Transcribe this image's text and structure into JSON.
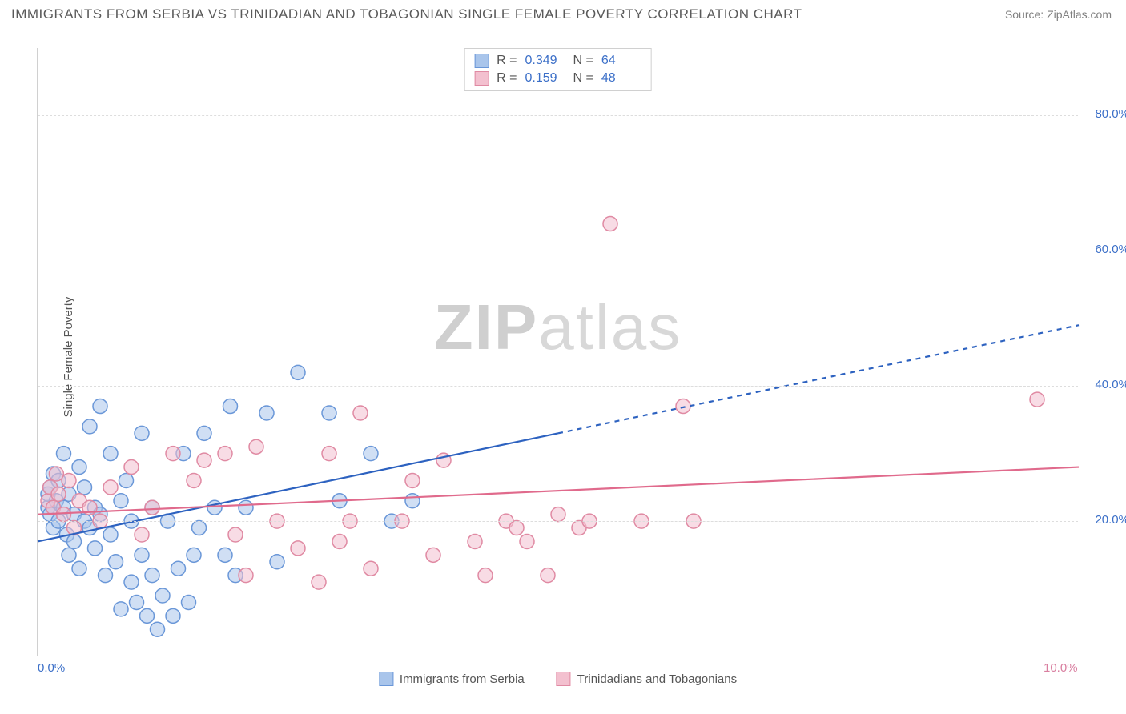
{
  "title": "IMMIGRANTS FROM SERBIA VS TRINIDADIAN AND TOBAGONIAN SINGLE FEMALE POVERTY CORRELATION CHART",
  "source": "Source: ZipAtlas.com",
  "watermark_a": "ZIP",
  "watermark_b": "atlas",
  "y_axis_title": "Single Female Poverty",
  "chart": {
    "type": "scatter",
    "xlim": [
      0,
      10
    ],
    "ylim": [
      0,
      90
    ],
    "x_ticks": [
      {
        "value": 0,
        "label": "0.0%",
        "color": "#3b6fc8"
      },
      {
        "value": 10,
        "label": "10.0%",
        "color": "#d97fa0"
      }
    ],
    "y_ticks": [
      {
        "value": 20,
        "label": "20.0%",
        "color": "#3b6fc8"
      },
      {
        "value": 40,
        "label": "40.0%",
        "color": "#3b6fc8"
      },
      {
        "value": 60,
        "label": "60.0%",
        "color": "#3b6fc8"
      },
      {
        "value": 80,
        "label": "80.0%",
        "color": "#3b6fc8"
      }
    ],
    "gridline_color": "#dddddd",
    "background_color": "#ffffff",
    "marker_radius": 9,
    "marker_stroke_width": 1.5,
    "series": [
      {
        "name": "Immigrants from Serbia",
        "fill": "#a9c5eb",
        "stroke": "#6a97d8",
        "fill_opacity": 0.55,
        "R": "0.349",
        "N": "64",
        "points": [
          [
            0.1,
            22
          ],
          [
            0.1,
            24
          ],
          [
            0.12,
            21
          ],
          [
            0.12,
            25
          ],
          [
            0.15,
            27
          ],
          [
            0.15,
            19
          ],
          [
            0.18,
            23
          ],
          [
            0.2,
            20
          ],
          [
            0.2,
            26
          ],
          [
            0.25,
            22
          ],
          [
            0.25,
            30
          ],
          [
            0.28,
            18
          ],
          [
            0.3,
            24
          ],
          [
            0.3,
            15
          ],
          [
            0.35,
            21
          ],
          [
            0.35,
            17
          ],
          [
            0.4,
            28
          ],
          [
            0.4,
            13
          ],
          [
            0.45,
            20
          ],
          [
            0.45,
            25
          ],
          [
            0.5,
            34
          ],
          [
            0.5,
            19
          ],
          [
            0.55,
            22
          ],
          [
            0.55,
            16
          ],
          [
            0.6,
            37
          ],
          [
            0.6,
            21
          ],
          [
            0.65,
            12
          ],
          [
            0.7,
            30
          ],
          [
            0.7,
            18
          ],
          [
            0.75,
            14
          ],
          [
            0.8,
            23
          ],
          [
            0.8,
            7
          ],
          [
            0.85,
            26
          ],
          [
            0.9,
            11
          ],
          [
            0.9,
            20
          ],
          [
            0.95,
            8
          ],
          [
            1.0,
            33
          ],
          [
            1.0,
            15
          ],
          [
            1.05,
            6
          ],
          [
            1.1,
            22
          ],
          [
            1.1,
            12
          ],
          [
            1.15,
            4
          ],
          [
            1.2,
            9
          ],
          [
            1.25,
            20
          ],
          [
            1.3,
            6
          ],
          [
            1.35,
            13
          ],
          [
            1.4,
            30
          ],
          [
            1.45,
            8
          ],
          [
            1.5,
            15
          ],
          [
            1.55,
            19
          ],
          [
            1.6,
            33
          ],
          [
            1.7,
            22
          ],
          [
            1.8,
            15
          ],
          [
            1.85,
            37
          ],
          [
            1.9,
            12
          ],
          [
            2.0,
            22
          ],
          [
            2.2,
            36
          ],
          [
            2.3,
            14
          ],
          [
            2.5,
            42
          ],
          [
            2.8,
            36
          ],
          [
            2.9,
            23
          ],
          [
            3.2,
            30
          ],
          [
            3.4,
            20
          ],
          [
            3.6,
            23
          ]
        ],
        "trend": {
          "x1": 0.0,
          "y1": 17,
          "x2": 5.0,
          "y2": 33,
          "dash_x2": 10.0,
          "dash_y2": 49,
          "color": "#2d62c0",
          "width": 2.2
        }
      },
      {
        "name": "Trinidadians and Tobagonians",
        "fill": "#f3c0cf",
        "stroke": "#e08aa3",
        "fill_opacity": 0.55,
        "R": "0.159",
        "N": "48",
        "points": [
          [
            0.1,
            23
          ],
          [
            0.12,
            25
          ],
          [
            0.15,
            22
          ],
          [
            0.18,
            27
          ],
          [
            0.2,
            24
          ],
          [
            0.25,
            21
          ],
          [
            0.3,
            26
          ],
          [
            0.35,
            19
          ],
          [
            0.4,
            23
          ],
          [
            0.5,
            22
          ],
          [
            0.6,
            20
          ],
          [
            0.7,
            25
          ],
          [
            0.9,
            28
          ],
          [
            1.0,
            18
          ],
          [
            1.1,
            22
          ],
          [
            1.3,
            30
          ],
          [
            1.5,
            26
          ],
          [
            1.6,
            29
          ],
          [
            1.8,
            30
          ],
          [
            1.9,
            18
          ],
          [
            2.0,
            12
          ],
          [
            2.1,
            31
          ],
          [
            2.3,
            20
          ],
          [
            2.5,
            16
          ],
          [
            2.7,
            11
          ],
          [
            2.8,
            30
          ],
          [
            2.9,
            17
          ],
          [
            3.0,
            20
          ],
          [
            3.1,
            36
          ],
          [
            3.2,
            13
          ],
          [
            3.5,
            20
          ],
          [
            3.6,
            26
          ],
          [
            3.8,
            15
          ],
          [
            3.9,
            29
          ],
          [
            4.2,
            17
          ],
          [
            4.3,
            12
          ],
          [
            4.5,
            20
          ],
          [
            4.6,
            19
          ],
          [
            4.7,
            17
          ],
          [
            4.9,
            12
          ],
          [
            5.0,
            21
          ],
          [
            5.2,
            19
          ],
          [
            5.3,
            20
          ],
          [
            5.5,
            64
          ],
          [
            5.8,
            20
          ],
          [
            6.2,
            37
          ],
          [
            6.3,
            20
          ],
          [
            9.6,
            38
          ]
        ],
        "trend": {
          "x1": 0.0,
          "y1": 21,
          "x2": 10.0,
          "y2": 28,
          "color": "#e06a8c",
          "width": 2.2
        }
      }
    ]
  },
  "stats_legend": {
    "r_label": "R =",
    "n_label": "N ="
  },
  "bottom_legend": {
    "serbia": "Immigrants from Serbia",
    "trinidad": "Trinidadians and Tobagonians"
  }
}
